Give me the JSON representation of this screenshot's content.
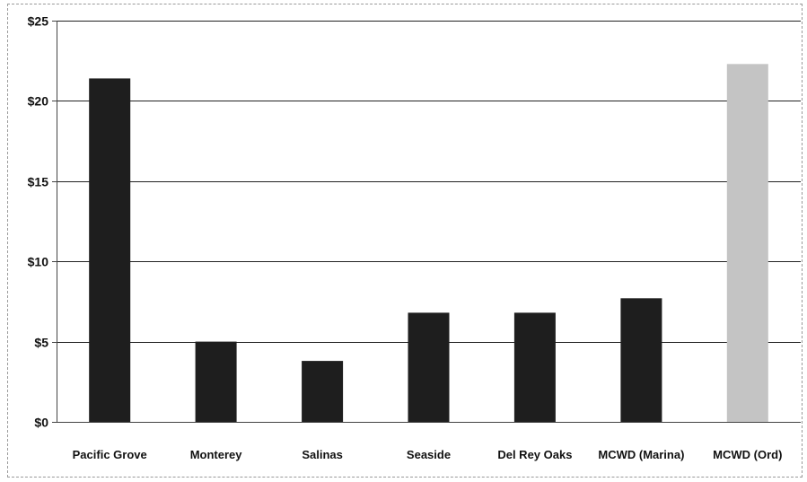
{
  "chart_data": {
    "type": "bar",
    "title": "",
    "xlabel": "",
    "ylabel": "",
    "categories": [
      "Pacific Grove",
      "Monterey",
      "Salinas",
      "Seaside",
      "Del Rey Oaks",
      "MCWD (Marina)",
      "MCWD (Ord)"
    ],
    "values": [
      21.4,
      5.0,
      3.8,
      6.8,
      6.8,
      7.7,
      22.3
    ],
    "ylim": [
      0,
      25
    ],
    "yticks": [
      0,
      5,
      10,
      15,
      20,
      25
    ],
    "ytick_labels": [
      "$0",
      "$5",
      "$10",
      "$15",
      "$20",
      "$25"
    ],
    "grid": true,
    "legend": "none",
    "colors": {
      "bar": "#1e1e1e",
      "highlight_bar": "#c4c4c4",
      "grid": "#222222",
      "axis": "#444444"
    },
    "highlighted_categories": [
      "MCWD (Ord)"
    ]
  }
}
